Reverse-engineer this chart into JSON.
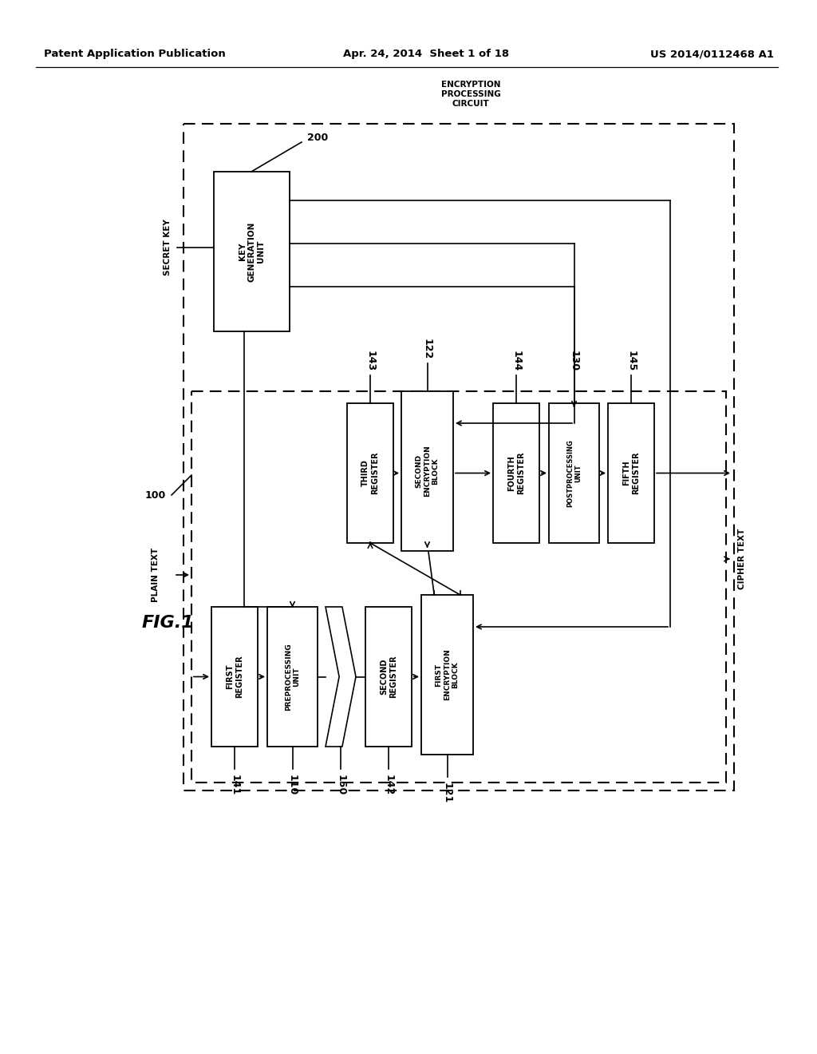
{
  "header_left": "Patent Application Publication",
  "header_mid": "Apr. 24, 2014  Sheet 1 of 18",
  "header_right": "US 2014/0112468 A1",
  "bg": "#ffffff",
  "lc": "#000000"
}
